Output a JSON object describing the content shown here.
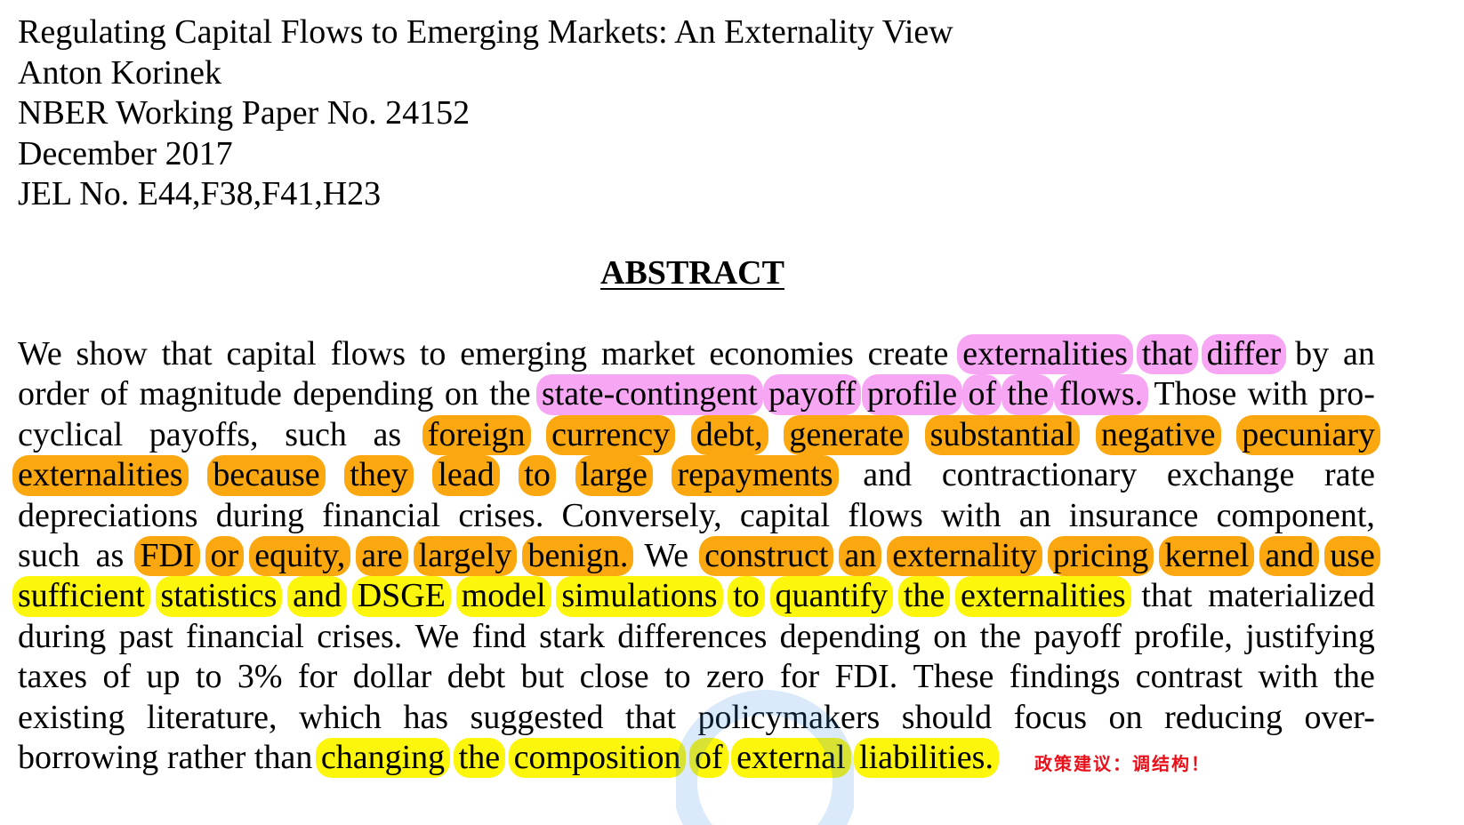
{
  "header": {
    "title": "Regulating Capital Flows to Emerging Markets: An Externality View",
    "author": "Anton Korinek",
    "series": "NBER Working Paper No. 24152",
    "date": "December 2017",
    "jel": "JEL No. E44,F38,F41,H23"
  },
  "abstract_heading": "ABSTRACT",
  "abstract_lines": [
    [
      {
        "text": "We show that capital flows to emerging market economies create",
        "hl": null
      },
      {
        "text": "externalities that differ",
        "hl": "pink"
      },
      {
        "text": "by an",
        "hl": null
      }
    ],
    [
      {
        "text": "order of magnitude depending on the",
        "hl": null
      },
      {
        "text": "state-contingent payoff profile of the flows.",
        "hl": "pink"
      },
      {
        "text": "Those with pro-",
        "hl": null
      }
    ],
    [
      {
        "text": "cyclical payoffs, such as",
        "hl": null
      },
      {
        "text": "foreign currency debt, generate substantial negative pecuniary",
        "hl": "orange"
      }
    ],
    [
      {
        "text": "externalities because they lead to large repayments",
        "hl": "orange"
      },
      {
        "text": "and contractionary exchange rate",
        "hl": null
      }
    ],
    [
      {
        "text": "depreciations during financial crises. Conversely, capital flows with an insurance component,",
        "hl": null
      }
    ],
    [
      {
        "text": "such as",
        "hl": null
      },
      {
        "text": "FDI or equity, are largely benign.",
        "hl": "orange"
      },
      {
        "text": "We",
        "hl": null
      },
      {
        "text": "construct an externality pricing kernel and use",
        "hl": "orange"
      }
    ],
    [
      {
        "text": "sufficient statistics and DSGE model simulations to quantify the externalities",
        "hl": "yellow"
      },
      {
        "text": "that materialized",
        "hl": null
      }
    ],
    [
      {
        "text": "during past financial crises. We find stark differences depending on the payoff profile, justifying",
        "hl": null
      }
    ],
    [
      {
        "text": "taxes of up to 3% for dollar debt but close to zero for FDI. These findings contrast with the",
        "hl": null
      }
    ],
    [
      {
        "text": "existing literature, which has suggested that policymakers should focus on reducing over-",
        "hl": null
      }
    ],
    [
      {
        "text": "borrowing rather than",
        "hl": null
      },
      {
        "text": "changing the composition of external liabilities.",
        "hl": "yellow"
      }
    ]
  ],
  "annotation_note": "政策建议：调结构！",
  "colors": {
    "pink_highlight": "#f7a6f4",
    "orange_highlight": "#fba70f",
    "yellow_highlight": "#fbf60b",
    "note_red": "#e8101a"
  }
}
